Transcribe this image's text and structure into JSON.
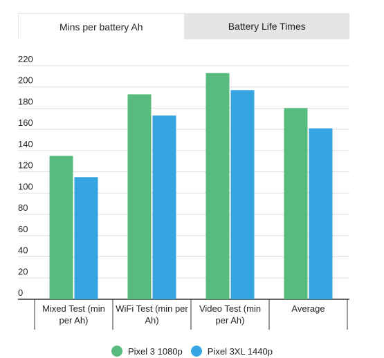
{
  "tabs": [
    {
      "label": "Mins per battery Ah",
      "active": true
    },
    {
      "label": "Battery Life Times",
      "active": false
    }
  ],
  "chart_data": {
    "type": "bar",
    "title": "",
    "xlabel": "",
    "ylabel": "",
    "ylim": [
      0,
      220
    ],
    "yticks": [
      0,
      20,
      40,
      60,
      80,
      100,
      120,
      140,
      160,
      180,
      200,
      220
    ],
    "grid": true,
    "legend_position": "bottom",
    "categories": [
      [
        "Mixed Test (min",
        "per Ah)"
      ],
      [
        "WiFi Test (min per",
        "Ah)"
      ],
      [
        "Video Test (min",
        "per Ah)"
      ],
      [
        "Average"
      ]
    ],
    "series": [
      {
        "name": "Pixel 3 1080p",
        "color": "#57bb7e",
        "values": [
          135,
          193,
          213,
          180
        ]
      },
      {
        "name": "Pixel 3XL 1440p",
        "color": "#36a6e2",
        "values": [
          115,
          173,
          197,
          161
        ]
      }
    ]
  }
}
